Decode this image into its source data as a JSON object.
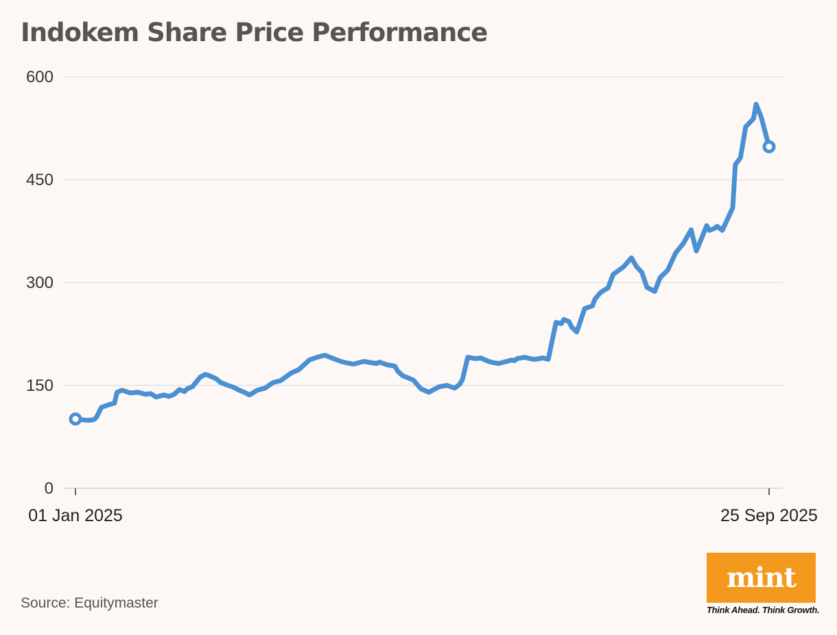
{
  "title": "Indokem Share Price Performance",
  "source": "Source: Equitymaster",
  "brand": {
    "name": "mint",
    "tagline": "Think Ahead. Think Growth.",
    "color": "#f39a1e"
  },
  "colors": {
    "line": "#4a90d2",
    "grid": "#dddddd",
    "background": "#fdf8f6"
  },
  "chart_data": {
    "type": "line",
    "title": "Indokem Share Price Performance",
    "xlabel": "",
    "ylabel": "",
    "ylim": [
      0,
      600
    ],
    "yticks": [
      0,
      150,
      300,
      450,
      600
    ],
    "xlim": [
      "2025-01-01",
      "2025-09-25"
    ],
    "xtick_labels": [
      "01 Jan 2025",
      "25 Sep 2025"
    ],
    "grid": "horizontal",
    "series": [
      {
        "x": [
          "2025-01-01",
          "2025-01-03",
          "2025-01-06",
          "2025-01-08",
          "2025-01-09",
          "2025-01-11",
          "2025-01-14",
          "2025-01-16",
          "2025-01-17",
          "2025-01-19",
          "2025-01-22",
          "2025-01-25",
          "2025-01-28",
          "2025-01-30",
          "2025-02-01",
          "2025-02-04",
          "2025-02-06",
          "2025-02-08",
          "2025-02-10",
          "2025-02-12",
          "2025-02-13",
          "2025-02-15",
          "2025-02-18",
          "2025-02-20",
          "2025-02-21",
          "2025-02-24",
          "2025-02-26",
          "2025-02-28",
          "2025-03-03",
          "2025-03-05",
          "2025-03-07",
          "2025-03-09",
          "2025-03-12",
          "2025-03-15",
          "2025-03-18",
          "2025-03-21",
          "2025-03-25",
          "2025-03-28",
          "2025-04-01",
          "2025-04-04",
          "2025-04-07",
          "2025-04-11",
          "2025-04-14",
          "2025-04-18",
          "2025-04-20",
          "2025-04-22",
          "2025-04-25",
          "2025-04-27",
          "2025-04-28",
          "2025-05-01",
          "2025-05-04",
          "2025-05-05",
          "2025-05-07",
          "2025-05-11",
          "2025-05-14",
          "2025-05-17",
          "2025-05-19",
          "2025-05-21",
          "2025-05-24",
          "2025-05-27",
          "2025-05-29",
          "2025-05-30",
          "2025-06-01",
          "2025-06-04",
          "2025-06-06",
          "2025-06-09",
          "2025-06-11",
          "2025-06-13",
          "2025-06-15",
          "2025-06-18",
          "2025-06-19",
          "2025-06-20",
          "2025-06-23",
          "2025-06-25",
          "2025-06-27",
          "2025-06-30",
          "2025-07-02",
          "2025-07-05",
          "2025-07-07",
          "2025-07-08",
          "2025-07-10",
          "2025-07-11",
          "2025-07-13",
          "2025-07-16",
          "2025-07-19",
          "2025-07-20",
          "2025-07-22",
          "2025-07-24",
          "2025-07-25",
          "2025-07-27",
          "2025-07-31",
          "2025-08-03",
          "2025-08-05",
          "2025-08-07",
          "2025-08-09",
          "2025-08-12",
          "2025-08-14",
          "2025-08-17",
          "2025-08-20",
          "2025-08-23",
          "2025-08-26",
          "2025-08-27",
          "2025-08-28",
          "2025-09-01",
          "2025-09-02",
          "2025-09-04",
          "2025-09-05",
          "2025-09-07",
          "2025-09-11",
          "2025-09-12",
          "2025-09-14",
          "2025-09-16",
          "2025-09-19",
          "2025-09-20",
          "2025-09-22",
          "2025-09-25"
        ],
        "values": [
          101,
          100,
          99,
          100,
          103,
          118,
          122,
          124,
          140,
          143,
          139,
          140,
          137,
          138,
          133,
          136,
          134,
          137,
          144,
          141,
          145,
          148,
          162,
          166,
          165,
          160,
          154,
          151,
          147,
          143,
          140,
          136,
          143,
          146,
          154,
          157,
          168,
          173,
          187,
          191,
          194,
          188,
          184,
          181,
          183,
          185,
          183,
          182,
          184,
          180,
          178,
          171,
          164,
          158,
          145,
          140,
          144,
          148,
          150,
          146,
          152,
          159,
          191,
          189,
          190,
          185,
          183,
          182,
          184,
          187,
          186,
          189,
          191,
          189,
          188,
          190,
          188,
          242,
          240,
          246,
          243,
          235,
          228,
          262,
          266,
          276,
          285,
          290,
          292,
          312,
          323,
          336,
          323,
          315,
          293,
          287,
          307,
          318,
          343,
          357,
          377,
          361,
          346,
          383,
          376,
          379,
          382,
          376,
          409,
          472,
          482,
          527,
          539,
          560,
          541,
          498
        ]
      }
    ]
  }
}
